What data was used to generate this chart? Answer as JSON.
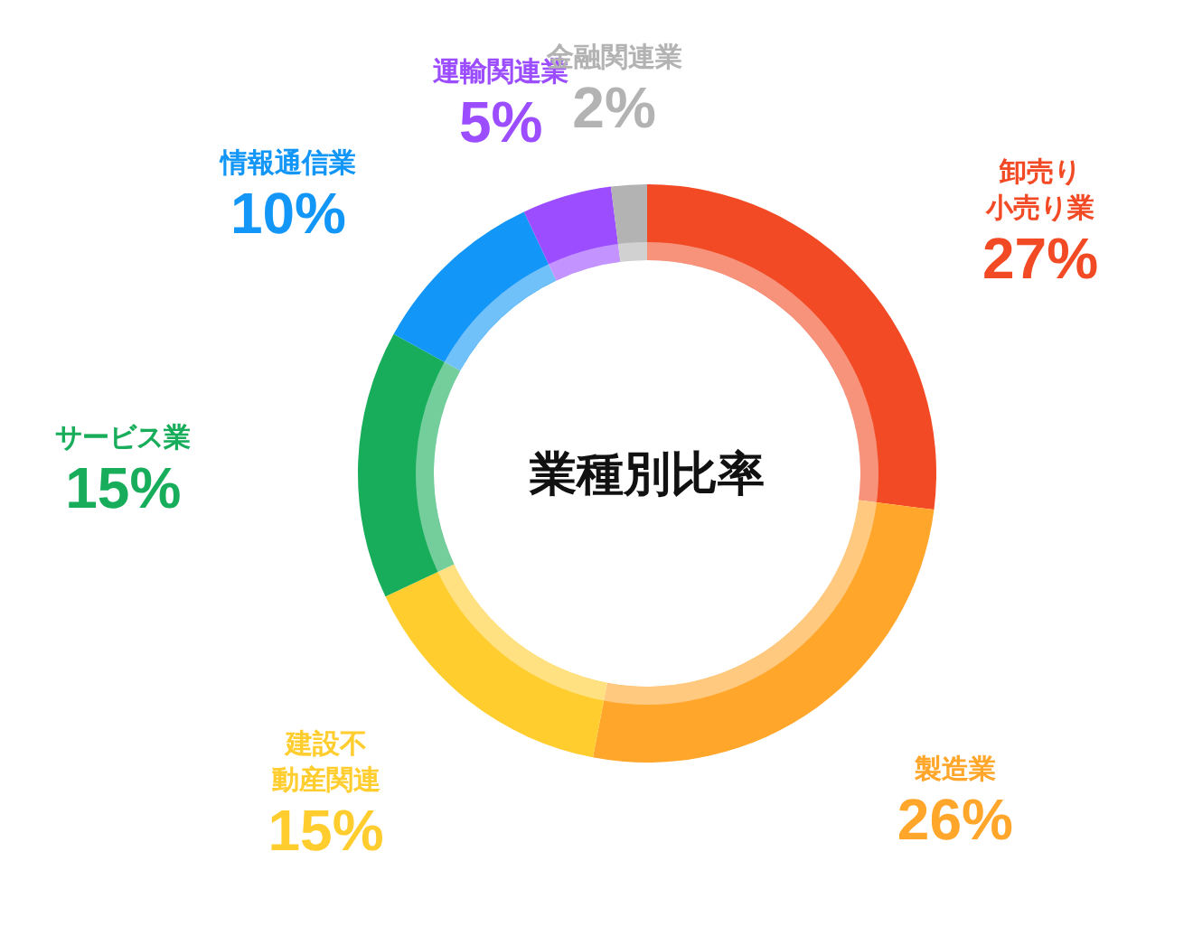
{
  "chart_data": {
    "type": "donut",
    "title": "業種別比率",
    "categories": [
      "卸売り小売り業",
      "製造業",
      "建設不動産関連",
      "サービス業",
      "情報通信業",
      "運輸関連業",
      "金融関連業"
    ],
    "values": [
      27,
      26,
      15,
      15,
      10,
      5,
      2
    ],
    "value_labels": [
      "27%",
      "26%",
      "15%",
      "15%",
      "10%",
      "5%",
      "2%"
    ],
    "colors": [
      "#f24a24",
      "#ffa62b",
      "#ffcd2e",
      "#17ad5a",
      "#1296f7",
      "#9b4dff",
      "#b3b3b3"
    ]
  }
}
